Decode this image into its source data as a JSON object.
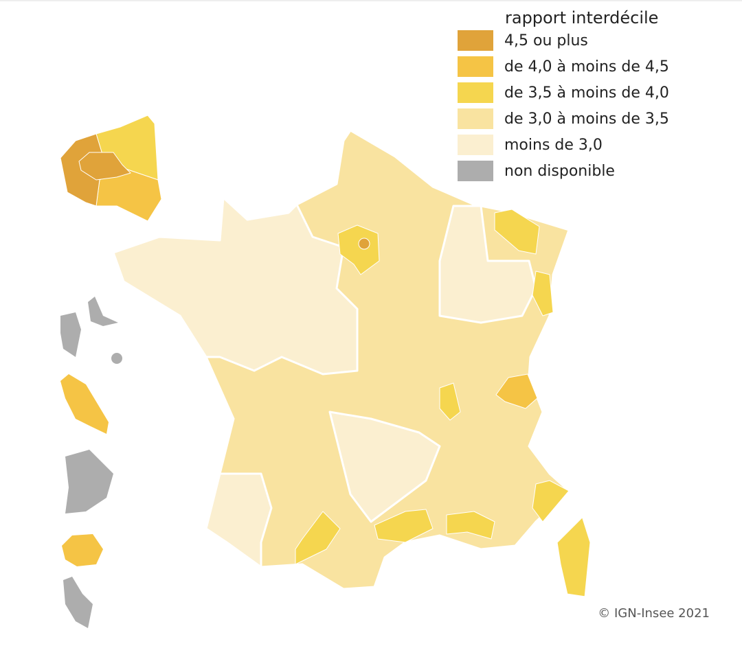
{
  "legend": {
    "title": "rapport interdécile",
    "items": [
      {
        "label": "4,5 ou plus",
        "color": "#e0a33a"
      },
      {
        "label": "de 4,0 à moins de 4,5",
        "color": "#f5c445"
      },
      {
        "label": "de 3,5 à moins de 4,0",
        "color": "#f5d64f"
      },
      {
        "label": "de 3,0 à moins de 3,5",
        "color": "#f9e3a0"
      },
      {
        "label": "moins de 3,0",
        "color": "#fbefd0"
      },
      {
        "label": "non disponible",
        "color": "#adadad"
      }
    ]
  },
  "credit": "© IGN-Insee 2021"
}
